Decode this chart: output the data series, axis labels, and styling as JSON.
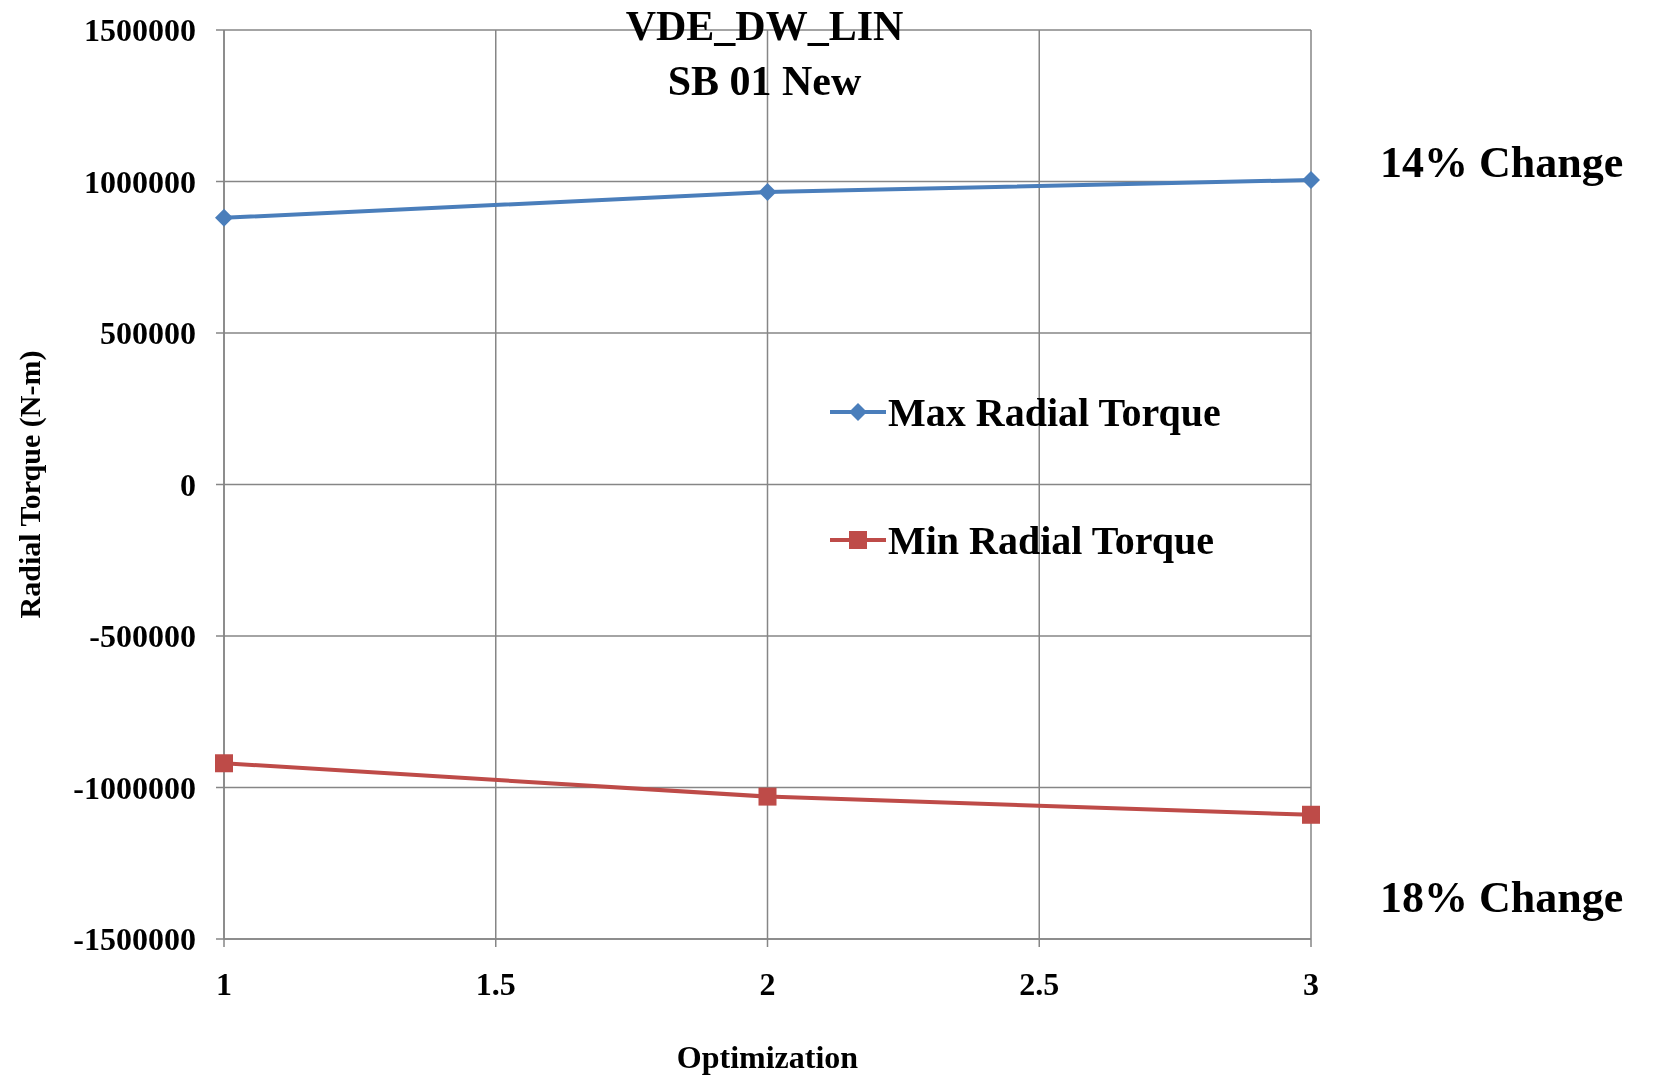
{
  "chart_data": {
    "type": "line",
    "title": "VDE_DW_LIN\nSB 01 New",
    "xlabel": "Optimization",
    "ylabel": "Radial Torque (N-m)",
    "x": [
      1,
      2,
      3
    ],
    "series": [
      {
        "name": "Max Radial Torque",
        "color": "#4a7ebb",
        "marker": "diamond",
        "values": [
          880000,
          965000,
          1005000
        ]
      },
      {
        "name": "Min Radial Torque",
        "color": "#be4b48",
        "marker": "square",
        "values": [
          -920000,
          -1030000,
          -1090000
        ]
      }
    ],
    "xlim": [
      1,
      3
    ],
    "xticks": [
      1,
      1.5,
      2,
      2.5,
      3
    ],
    "ylim": [
      -1500000,
      1500000
    ],
    "yticks": [
      -1500000,
      -1000000,
      -500000,
      0,
      500000,
      1000000,
      1500000
    ],
    "grid": true,
    "legend": "right",
    "line_style": "solid",
    "annotations": [
      "14% Change",
      "18% Change"
    ]
  }
}
